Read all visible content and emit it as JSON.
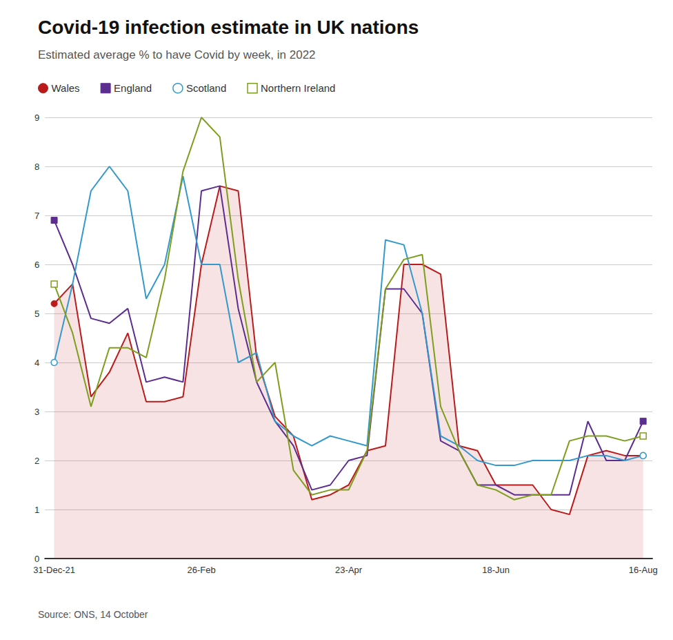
{
  "chart_data": {
    "type": "line",
    "title": "Covid-19 infection estimate in UK nations",
    "subtitle": "Estimated average % to have Covid by week, in 2022",
    "source": "Source: ONS, 14 October",
    "categories": [
      "31-Dec-21",
      null,
      null,
      null,
      null,
      null,
      null,
      null,
      "26-Feb",
      null,
      null,
      null,
      null,
      null,
      null,
      null,
      "23-Apr",
      null,
      null,
      null,
      null,
      null,
      null,
      null,
      "18-Jun",
      null,
      null,
      null,
      null,
      null,
      null,
      null,
      "16-Aug"
    ],
    "series": [
      {
        "name": "Wales",
        "color": "#bb1a1a",
        "marker": "circle",
        "type": "area",
        "values": [
          5.2,
          5.6,
          3.3,
          3.8,
          4.6,
          3.2,
          3.2,
          3.3,
          6.0,
          7.6,
          7.5,
          4.1,
          2.9,
          2.5,
          1.2,
          1.3,
          1.5,
          2.2,
          2.3,
          6.0,
          6.0,
          5.8,
          2.3,
          2.2,
          1.5,
          1.5,
          1.5,
          1.0,
          0.9,
          2.1,
          2.2,
          2.1,
          2.1
        ]
      },
      {
        "name": "England",
        "color": "#5b2d8e",
        "marker": "square",
        "type": "line",
        "values": [
          6.9,
          6.0,
          4.9,
          4.8,
          5.1,
          3.6,
          3.7,
          3.6,
          7.5,
          7.6,
          5.1,
          3.6,
          2.8,
          2.3,
          1.4,
          1.5,
          2.0,
          2.1,
          5.5,
          5.5,
          5.0,
          2.4,
          2.2,
          1.5,
          1.5,
          1.3,
          1.3,
          1.3,
          1.3,
          2.8,
          2.0,
          2.0,
          2.8
        ]
      },
      {
        "name": "Scotland",
        "color": "#3399cc",
        "marker": "open_circle",
        "type": "line",
        "values": [
          4.0,
          5.6,
          7.5,
          8.0,
          7.5,
          5.3,
          6.0,
          7.8,
          6.0,
          6.0,
          4.0,
          4.2,
          2.8,
          2.5,
          2.3,
          2.5,
          2.4,
          2.3,
          6.5,
          6.4,
          5.0,
          2.5,
          2.3,
          2.0,
          1.9,
          1.9,
          2.0,
          2.0,
          2.0,
          2.1,
          2.1,
          2.0,
          2.1
        ]
      },
      {
        "name": "Northern Ireland",
        "color": "#7d9e1d",
        "marker": "open_square",
        "type": "line",
        "values": [
          5.6,
          4.6,
          3.1,
          4.3,
          4.3,
          4.1,
          5.7,
          7.9,
          9.0,
          8.6,
          5.7,
          3.6,
          4.0,
          1.8,
          1.3,
          1.4,
          1.4,
          2.2,
          5.5,
          6.1,
          6.2,
          3.1,
          2.2,
          1.5,
          1.4,
          1.2,
          1.3,
          1.3,
          2.4,
          2.5,
          2.5,
          2.4,
          2.5
        ]
      }
    ],
    "ylim": [
      0,
      9
    ],
    "yticks": [
      0,
      1,
      2,
      3,
      4,
      5,
      6,
      7,
      8,
      9
    ],
    "grid": true,
    "legend": "top"
  }
}
